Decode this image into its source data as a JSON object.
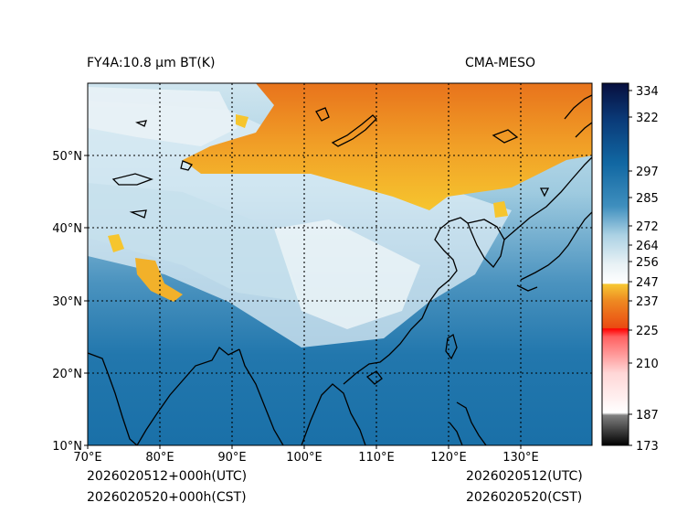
{
  "header": {
    "left_title": "FY4A:10.8 µm BT(K)",
    "right_title": "CMA-MESO"
  },
  "footer": {
    "left_line1": "2026020512+000h(UTC)",
    "left_line2": "2026020520+000h(CST)",
    "right_line1": "2026020512(UTC)",
    "right_line2": "2026020520(CST)"
  },
  "map": {
    "lon_range": [
      70,
      140
    ],
    "lat_range": [
      10,
      60
    ],
    "lon_ticks": [
      "70°E",
      "80°E",
      "90°E",
      "100°E",
      "110°E",
      "120°E",
      "130°E"
    ],
    "lat_ticks": [
      "10°N",
      "20°N",
      "30°N",
      "40°N",
      "50°N"
    ],
    "gridlines": "dotted"
  },
  "colorbar": {
    "ticks": [
      "334",
      "322",
      "297",
      "285",
      "272",
      "264",
      "256",
      "247",
      "237",
      "225",
      "210",
      "187",
      "173"
    ],
    "tick_values": [
      334,
      322,
      297,
      285,
      272,
      264,
      256,
      247,
      237,
      225,
      210,
      187,
      173
    ],
    "colors": {
      "cold_top": "#0a1140",
      "blue": "#1a6aa6",
      "light_blue": "#8ec2da",
      "white": "#f4f8fa",
      "yellow": "#f6c52e",
      "orange": "#e8731c",
      "red": "#ff0000",
      "pink": "#ffc8c8",
      "grey": "#808080",
      "black": "#000000"
    }
  }
}
